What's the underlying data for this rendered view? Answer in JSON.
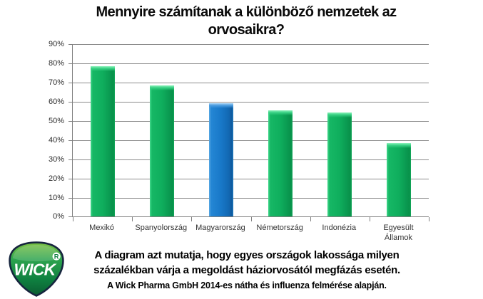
{
  "chart_data": {
    "type": "bar",
    "title": "Mennyire számítanak a különböző nemzetek az orvosaikra?",
    "categories": [
      "Mexikó",
      "Spanyolország",
      "Magyarország",
      "Németország",
      "Indonézia",
      "Egyesült Államok"
    ],
    "values": [
      78,
      68,
      59,
      55,
      54,
      38
    ],
    "value_unit": "%",
    "xlabel": "",
    "ylabel": "",
    "ylim": [
      0,
      90
    ],
    "ytick_step": 10,
    "ytick_labels": [
      "0%",
      "10%",
      "20%",
      "30%",
      "40%",
      "50%",
      "60%",
      "70%",
      "80%",
      "90%"
    ],
    "grid": true,
    "legend_position": "none",
    "bar_color": "#0fae5d",
    "highlight_index": 2,
    "highlight_color": "#1878c8"
  },
  "logo": {
    "brand": "WICK",
    "registered_mark": "®"
  },
  "caption": {
    "line1": "A diagram azt mutatja, hogy egyes országok lakossága milyen",
    "line2": "százalékban várja a megoldást háziorvosától megfázás esetén.",
    "source": "A Wick Pharma GmbH 2014-es nátha és influenza felmérése alapján."
  }
}
